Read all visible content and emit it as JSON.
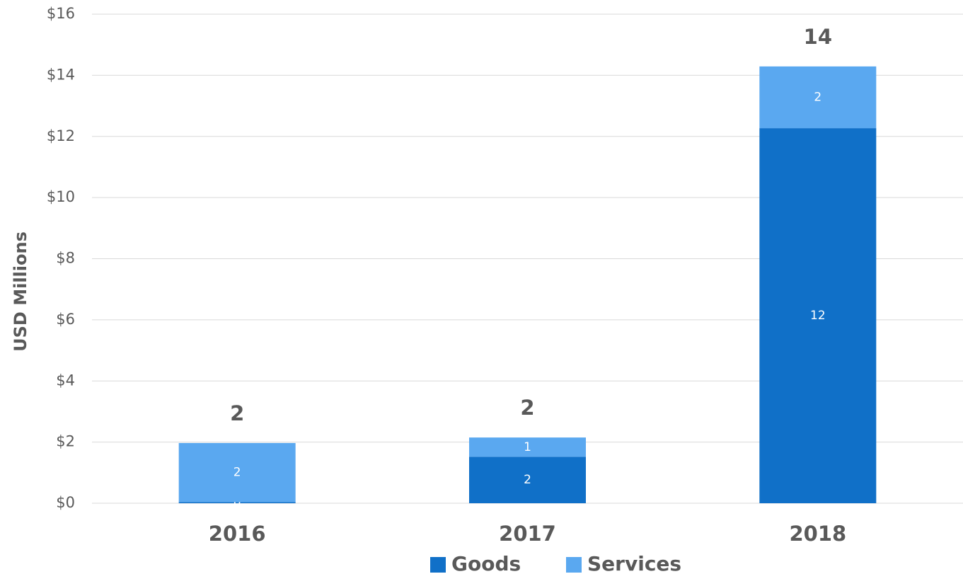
{
  "chart_data": {
    "type": "stacked_bar",
    "y_label": "USD Millions",
    "categories": [
      "2016",
      "2017",
      "2018"
    ],
    "series": [
      {
        "name": "Goods",
        "color": "#1070c8",
        "values": [
          0.04,
          1.52,
          12.27
        ],
        "value_labels": [
          "0",
          "2",
          "12"
        ]
      },
      {
        "name": "Services",
        "color": "#5aa8f0",
        "values": [
          1.93,
          0.63,
          2.02
        ],
        "value_labels": [
          "2",
          "1",
          "2"
        ]
      }
    ],
    "total_labels": [
      "2",
      "2",
      "14"
    ],
    "ylim": [
      0,
      16
    ],
    "yticks": [
      {
        "value": 0,
        "label": "$0"
      },
      {
        "value": 2,
        "label": "$2"
      },
      {
        "value": 4,
        "label": "$4"
      },
      {
        "value": 6,
        "label": "$6"
      },
      {
        "value": 8,
        "label": "$8"
      },
      {
        "value": 10,
        "label": "$10"
      },
      {
        "value": 12,
        "label": "$12"
      },
      {
        "value": 14,
        "label": "$14"
      },
      {
        "value": 16,
        "label": "$16"
      }
    ],
    "grid": true,
    "legend": "bottom"
  }
}
